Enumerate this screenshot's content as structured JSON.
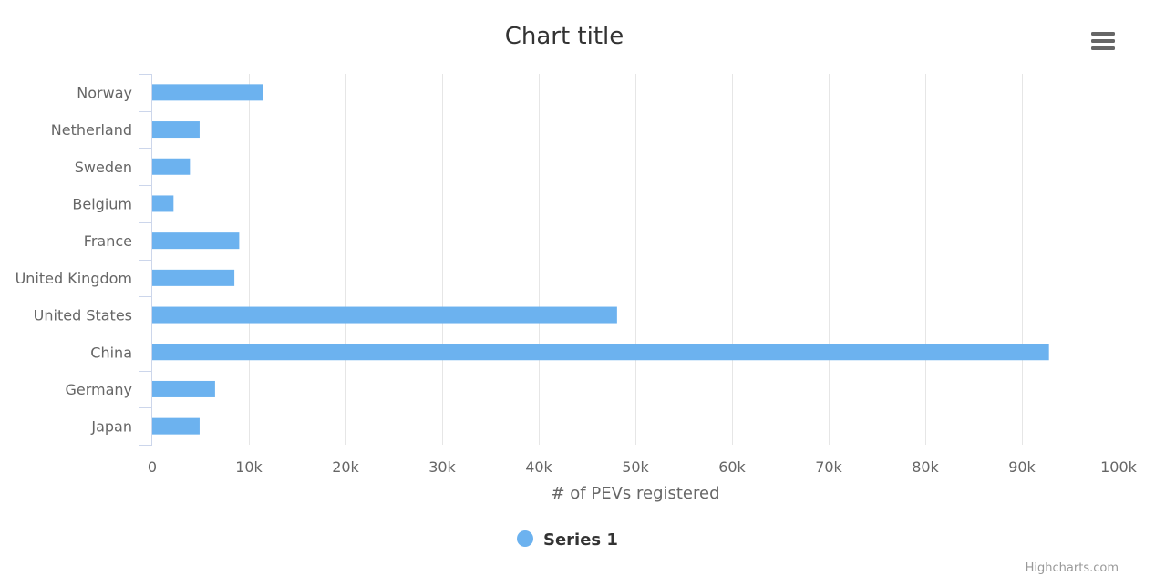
{
  "chart_data": {
    "type": "bar",
    "orientation": "horizontal",
    "title": "Chart title",
    "categories": [
      "Norway",
      "Netherland",
      "Sweden",
      "Belgium",
      "France",
      "United Kingdom",
      "United States",
      "China",
      "Germany",
      "Japan"
    ],
    "series": [
      {
        "name": "Series 1",
        "color": "#6cb2ef",
        "values": [
          11500,
          4900,
          3900,
          2200,
          9000,
          8500,
          48100,
          92800,
          6500,
          4900
        ]
      }
    ],
    "xlabel": "# of PEVs registered",
    "ylabel": "",
    "xlim": [
      0,
      100000
    ],
    "ticks": [
      0,
      10000,
      20000,
      30000,
      40000,
      50000,
      60000,
      70000,
      80000,
      90000,
      100000
    ],
    "tick_labels": [
      "0",
      "10k",
      "20k",
      "30k",
      "40k",
      "50k",
      "60k",
      "70k",
      "80k",
      "90k",
      "100k"
    ],
    "grid": true,
    "legend": "bottom-center"
  },
  "credits": "Highcharts.com",
  "menu_icon": "hamburger-menu-icon",
  "colors": {
    "gridline": "#e6e6e6",
    "axis_line": "#ccd6eb",
    "menu": "#666666"
  }
}
